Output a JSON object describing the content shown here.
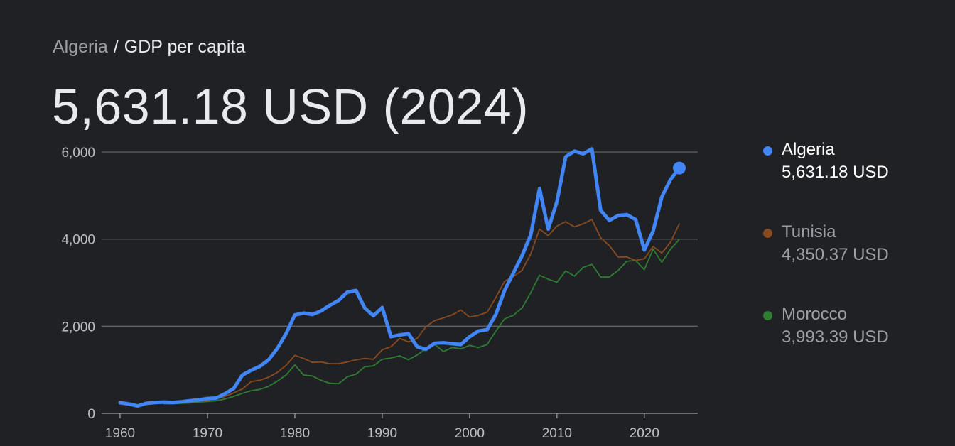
{
  "breadcrumb": {
    "parent": "Algeria",
    "separator": "/",
    "current": "GDP per capita"
  },
  "headline": "5,631.18 USD (2024)",
  "legend": [
    {
      "name": "Algeria",
      "value": "5,631.18 USD",
      "color": "#4285f4"
    },
    {
      "name": "Tunisia",
      "value": "4,350.37 USD",
      "color": "#8a4a1f"
    },
    {
      "name": "Morocco",
      "value": "3,993.39 USD",
      "color": "#2e7d32"
    }
  ],
  "chart_data": {
    "type": "line",
    "title": "",
    "xlabel": "",
    "ylabel": "",
    "xlim": [
      1960,
      2024
    ],
    "ylim": [
      0,
      6000
    ],
    "x_ticks": [
      "1960",
      "1970",
      "1980",
      "1990",
      "2000",
      "2010",
      "2020"
    ],
    "y_ticks": [
      "0",
      "2,000",
      "4,000",
      "6,000"
    ],
    "grid": "horizontal",
    "legend_position": "right",
    "series": [
      {
        "name": "Algeria",
        "color": "#4285f4",
        "x": [
          1960,
          1961,
          1962,
          1963,
          1964,
          1965,
          1966,
          1967,
          1968,
          1969,
          1970,
          1971,
          1972,
          1973,
          1974,
          1975,
          1976,
          1977,
          1978,
          1979,
          1980,
          1981,
          1982,
          1983,
          1984,
          1985,
          1986,
          1987,
          1988,
          1989,
          1990,
          1991,
          1992,
          1993,
          1994,
          1995,
          1996,
          1997,
          1998,
          1999,
          2000,
          2001,
          2002,
          2003,
          2004,
          2005,
          2006,
          2007,
          2008,
          2009,
          2010,
          2011,
          2012,
          2013,
          2014,
          2015,
          2016,
          2017,
          2018,
          2019,
          2020,
          2021,
          2022,
          2023,
          2024
        ],
        "values": [
          245,
          215,
          170,
          230,
          250,
          260,
          250,
          265,
          290,
          310,
          340,
          350,
          450,
          570,
          880,
          990,
          1080,
          1230,
          1490,
          1830,
          2260,
          2300,
          2270,
          2350,
          2480,
          2590,
          2780,
          2820,
          2420,
          2240,
          2430,
          1760,
          1800,
          1830,
          1530,
          1470,
          1610,
          1620,
          1600,
          1580,
          1760,
          1890,
          1920,
          2270,
          2820,
          3220,
          3620,
          4100,
          5160,
          4230,
          4860,
          5890,
          6020,
          5960,
          6070,
          4660,
          4430,
          4540,
          4560,
          4450,
          3750,
          4180,
          4970,
          5370,
          5631
        ]
      },
      {
        "name": "Tunisia",
        "color": "#8a4a1f",
        "x": [
          1965,
          1966,
          1967,
          1968,
          1969,
          1970,
          1971,
          1972,
          1973,
          1974,
          1975,
          1976,
          1977,
          1978,
          1979,
          1980,
          1981,
          1982,
          1983,
          1984,
          1985,
          1986,
          1987,
          1988,
          1989,
          1990,
          1991,
          1992,
          1993,
          1994,
          1995,
          1996,
          1997,
          1998,
          1999,
          2000,
          2001,
          2002,
          2003,
          2004,
          2005,
          2006,
          2007,
          2008,
          2009,
          2010,
          2011,
          2012,
          2013,
          2014,
          2015,
          2016,
          2017,
          2018,
          2019,
          2020,
          2021,
          2022,
          2023,
          2024
        ],
        "values": [
          230,
          230,
          250,
          260,
          280,
          300,
          330,
          390,
          470,
          560,
          730,
          760,
          830,
          940,
          1100,
          1330,
          1260,
          1170,
          1180,
          1140,
          1140,
          1180,
          1230,
          1260,
          1240,
          1460,
          1530,
          1720,
          1640,
          1720,
          1990,
          2130,
          2190,
          2260,
          2370,
          2210,
          2250,
          2320,
          2660,
          3030,
          3140,
          3280,
          3660,
          4230,
          4080,
          4300,
          4400,
          4280,
          4350,
          4450,
          4030,
          3850,
          3590,
          3590,
          3510,
          3550,
          3830,
          3680,
          3930,
          4350
        ]
      },
      {
        "name": "Morocco",
        "color": "#2e7d32",
        "x": [
          1965,
          1966,
          1967,
          1968,
          1969,
          1970,
          1971,
          1972,
          1973,
          1974,
          1975,
          1976,
          1977,
          1978,
          1979,
          1980,
          1981,
          1982,
          1983,
          1984,
          1985,
          1986,
          1987,
          1988,
          1989,
          1990,
          1991,
          1992,
          1993,
          1994,
          1995,
          1996,
          1997,
          1998,
          1999,
          2000,
          2001,
          2002,
          2003,
          2004,
          2005,
          2006,
          2007,
          2008,
          2009,
          2010,
          2011,
          2012,
          2013,
          2014,
          2015,
          2016,
          2017,
          2018,
          2019,
          2020,
          2021,
          2022,
          2023,
          2024
        ],
        "values": [
          220,
          220,
          230,
          240,
          260,
          270,
          290,
          330,
          390,
          460,
          520,
          550,
          620,
          740,
          880,
          1110,
          880,
          860,
          760,
          690,
          680,
          840,
          900,
          1070,
          1090,
          1240,
          1270,
          1320,
          1230,
          1340,
          1480,
          1580,
          1420,
          1510,
          1480,
          1560,
          1510,
          1580,
          1890,
          2170,
          2250,
          2420,
          2770,
          3170,
          3080,
          3010,
          3270,
          3150,
          3350,
          3420,
          3130,
          3130,
          3280,
          3490,
          3510,
          3300,
          3770,
          3470,
          3770,
          3993
        ]
      }
    ]
  }
}
